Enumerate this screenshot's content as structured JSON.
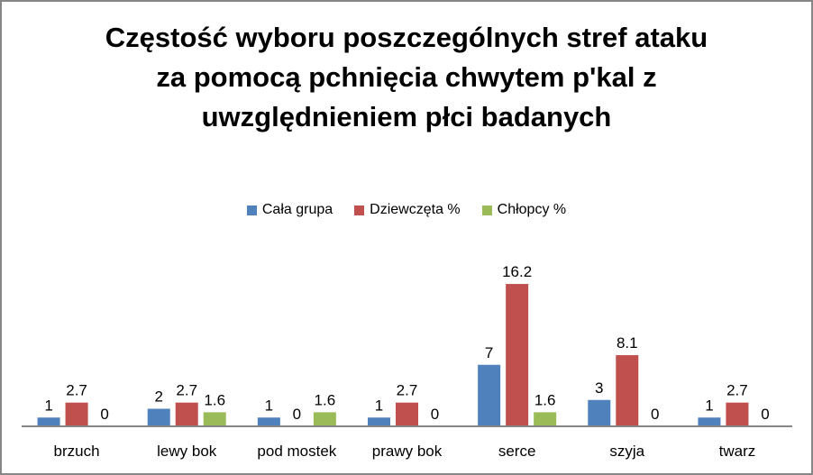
{
  "chart_data": {
    "type": "bar",
    "title": [
      "Częstość wyboru poszczególnych stref ataku",
      "za pomocą pchnięcia chwytem p'kal z",
      "uwzględnieniem płci badanych"
    ],
    "categories": [
      "brzuch",
      "lewy bok",
      "pod mostek",
      "prawy bok",
      "serce",
      "szyja",
      "twarz"
    ],
    "series": [
      {
        "name": "Cała grupa",
        "color": "#4F81BD",
        "values": [
          1,
          2,
          1,
          1,
          7,
          3,
          1
        ],
        "labels": [
          "1",
          "2",
          "1",
          "1",
          "7",
          "3",
          "1"
        ]
      },
      {
        "name": "Dziewczęta %",
        "color": "#C0504D",
        "values": [
          2.7,
          2.7,
          0,
          2.7,
          16.2,
          8.1,
          2.7
        ],
        "labels": [
          "2.7",
          "2.7",
          "0",
          "2.7",
          "16.2",
          "8.1",
          "2.7"
        ]
      },
      {
        "name": "Chłopcy %",
        "color": "#9BBB59",
        "values": [
          0,
          1.6,
          1.6,
          0,
          1.6,
          0,
          0
        ],
        "labels": [
          "0",
          "1.6",
          "1.6",
          "0",
          "1.6",
          "0",
          "0"
        ]
      }
    ],
    "xlabel": "",
    "ylabel": "",
    "ylim": [
      0,
      18
    ],
    "grid": false,
    "legend": "top"
  }
}
